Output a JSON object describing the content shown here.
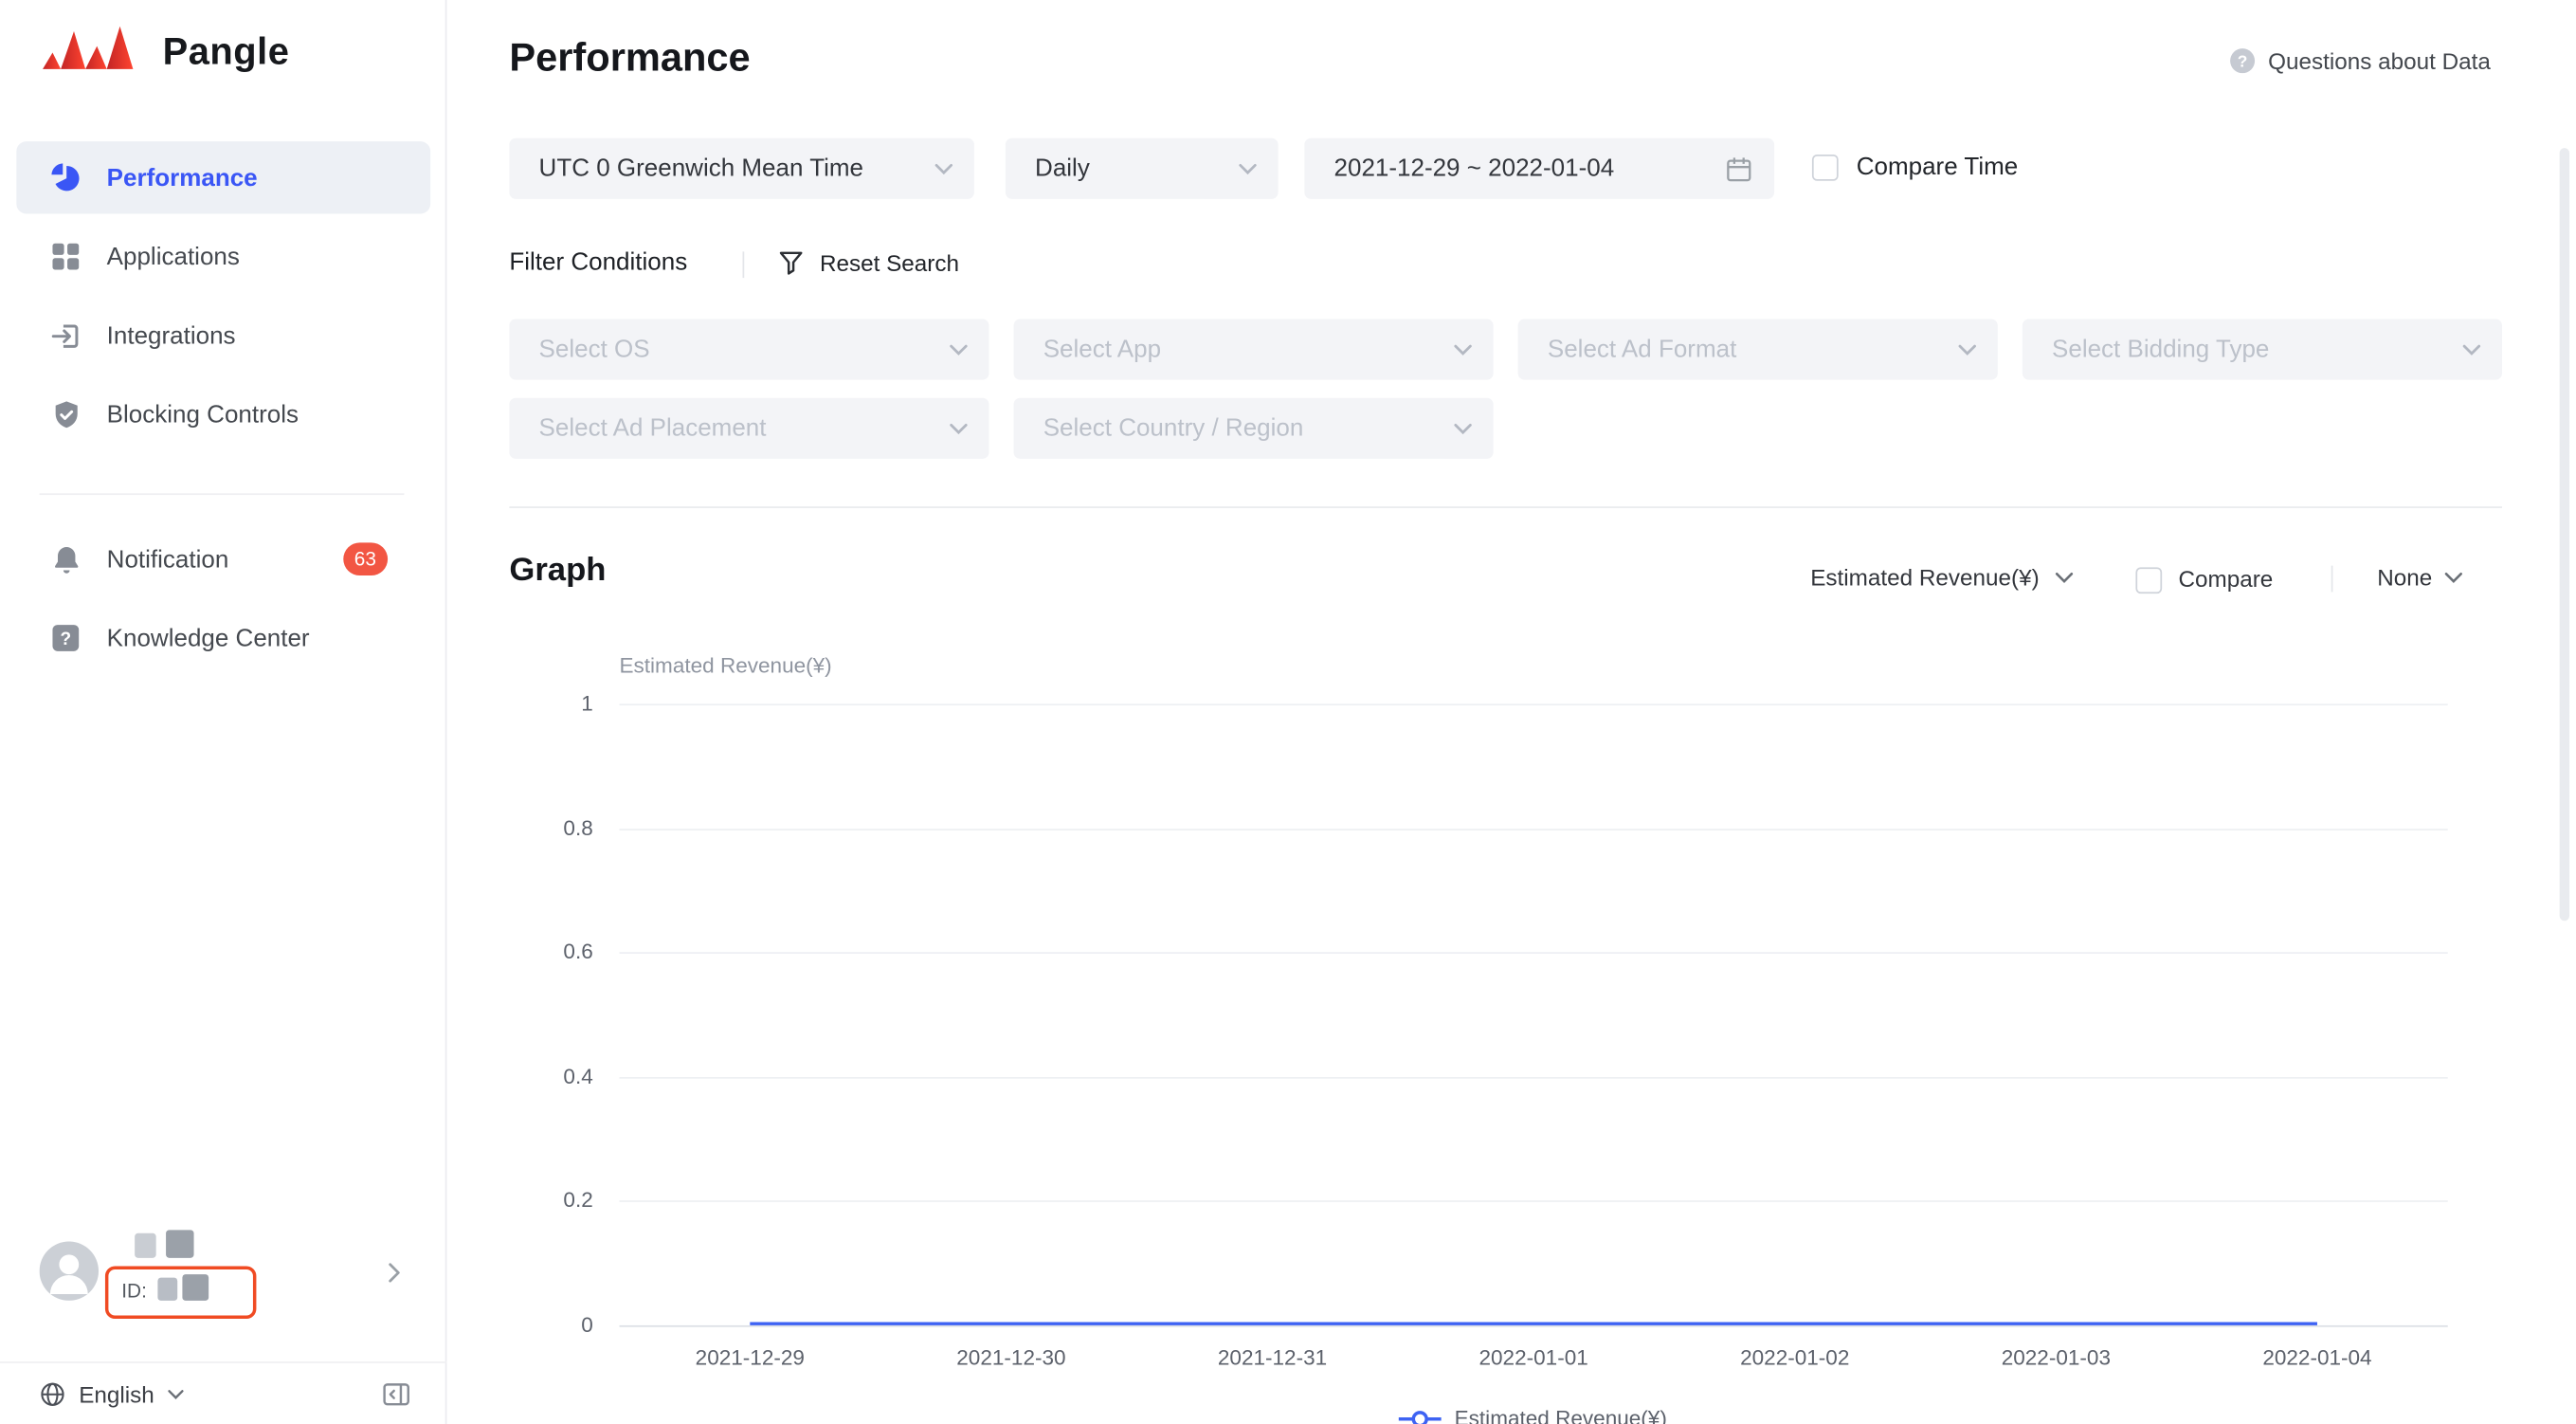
{
  "sidebar": {
    "logo_text": "Pangle",
    "items": [
      {
        "label": "Performance",
        "active": true
      },
      {
        "label": "Applications",
        "active": false
      },
      {
        "label": "Integrations",
        "active": false
      },
      {
        "label": "Blocking Controls",
        "active": false
      }
    ],
    "secondary_items": [
      {
        "label": "Notification",
        "badge": "63"
      },
      {
        "label": "Knowledge Center",
        "badge": ""
      }
    ],
    "user": {
      "id_label": "ID:"
    },
    "language": "English"
  },
  "header": {
    "title": "Performance",
    "help_label": "Questions about Data"
  },
  "filters": {
    "timezone": "UTC 0 Greenwich Mean Time",
    "granularity": "Daily",
    "date_range": "2021-12-29 ~ 2022-01-04",
    "compare_time_label": "Compare Time",
    "conditions_label": "Filter Conditions",
    "reset_label": "Reset Search",
    "selects_row1": [
      "Select OS",
      "Select App",
      "Select Ad Format",
      "Select Bidding Type"
    ],
    "selects_row2": [
      "Select Ad Placement",
      "Select Country / Region"
    ]
  },
  "graph": {
    "title": "Graph",
    "metric_label": "Estimated Revenue(¥)",
    "compare_label": "Compare",
    "dimension_label": "None",
    "y_axis_title": "Estimated Revenue(¥)",
    "legend_label": "Estimated Revenue(¥)"
  },
  "chart_data": {
    "type": "line",
    "x": [
      "2021-12-29",
      "2021-12-30",
      "2021-12-31",
      "2022-01-01",
      "2022-01-02",
      "2022-01-03",
      "2022-01-04"
    ],
    "series": [
      {
        "name": "Estimated Revenue(¥)",
        "values": [
          0,
          0,
          0,
          0,
          0,
          0,
          0
        ]
      }
    ],
    "title": "",
    "xlabel": "",
    "ylabel": "Estimated Revenue(¥)",
    "ylim": [
      0,
      1
    ],
    "yticks": [
      0,
      0.2,
      0.4,
      0.6,
      0.8,
      1
    ],
    "grid": true,
    "legend_position": "bottom",
    "line_color": "#3E63F3"
  },
  "colors": {
    "accent_blue": "#3A56F5",
    "badge_red": "#F25643",
    "annotation_red": "#F04B23",
    "line_blue": "#3E63F3"
  }
}
